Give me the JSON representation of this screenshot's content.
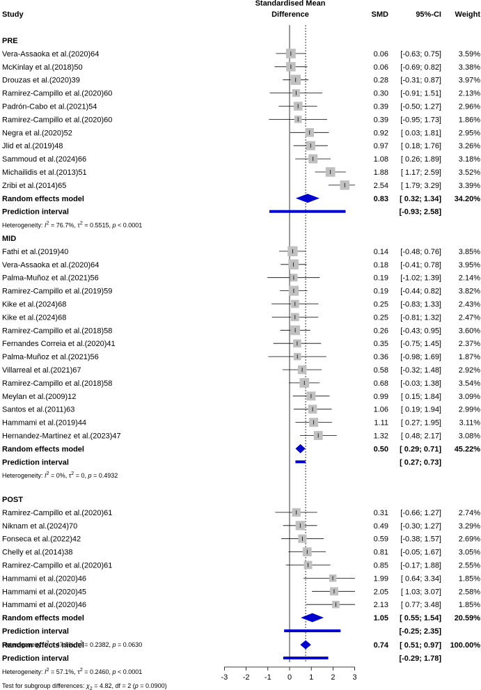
{
  "header": {
    "study": "Study",
    "effect_line1": "Standardised Mean",
    "effect_line2": "Difference",
    "smd": "SMD",
    "ci": "95%-CI",
    "weight": "Weight"
  },
  "chart_data": {
    "type": "forest",
    "xlim": [
      -3,
      3
    ],
    "xticks": [
      "-3",
      "-2",
      "-1",
      "0",
      "1",
      "2",
      "3"
    ],
    "reference_line": 0,
    "overall_line": 0.74,
    "colors": {
      "box": "#c0c0c0",
      "diamond": "#0000cc",
      "line": "#000000"
    },
    "groups": [
      {
        "name": "PRE",
        "studies": [
          {
            "label": "Vera-Assaoka et al.(2020)64",
            "smd": 0.06,
            "lo": -0.63,
            "hi": 0.75,
            "smd_text": "0.06",
            "ci_text": "[-0.63; 0.75]",
            "weight": "3.59%"
          },
          {
            "label": "McKinlay et al.(2018)50",
            "smd": 0.06,
            "lo": -0.69,
            "hi": 0.82,
            "smd_text": "0.06",
            "ci_text": "[-0.69; 0.82]",
            "weight": "3.38%"
          },
          {
            "label": "Drouzas et al.(2020)39",
            "smd": 0.28,
            "lo": -0.31,
            "hi": 0.87,
            "smd_text": "0.28",
            "ci_text": "[-0.31; 0.87]",
            "weight": "3.97%"
          },
          {
            "label": "Ramirez-Campillo et al.(2020)60",
            "smd": 0.3,
            "lo": -0.91,
            "hi": 1.51,
            "smd_text": "0.30",
            "ci_text": "[-0.91; 1.51]",
            "weight": "2.13%"
          },
          {
            "label": "Padrón-Cabo et al.(2021)54",
            "smd": 0.39,
            "lo": -0.5,
            "hi": 1.27,
            "smd_text": "0.39",
            "ci_text": "[-0.50; 1.27]",
            "weight": "2.96%"
          },
          {
            "label": "Ramirez-Campillo et al.(2020)60",
            "smd": 0.39,
            "lo": -0.95,
            "hi": 1.73,
            "smd_text": "0.39",
            "ci_text": "[-0.95; 1.73]",
            "weight": "1.86%"
          },
          {
            "label": "Negra et al.(2020)52",
            "smd": 0.92,
            "lo": 0.03,
            "hi": 1.81,
            "smd_text": "0.92",
            "ci_text": "[ 0.03; 1.81]",
            "weight": "2.95%"
          },
          {
            "label": "Jlid et al.(2019)48",
            "smd": 0.97,
            "lo": 0.18,
            "hi": 1.76,
            "smd_text": "0.97",
            "ci_text": "[ 0.18; 1.76]",
            "weight": "3.26%"
          },
          {
            "label": "Sammoud et al.(2024)66",
            "smd": 1.08,
            "lo": 0.26,
            "hi": 1.89,
            "smd_text": "1.08",
            "ci_text": "[ 0.26; 1.89]",
            "weight": "3.18%"
          },
          {
            "label": "Michailidis et al.(2013)51",
            "smd": 1.88,
            "lo": 1.17,
            "hi": 2.59,
            "smd_text": "1.88",
            "ci_text": "[ 1.17; 2.59]",
            "weight": "3.52%"
          },
          {
            "label": "Zribi et al.(2014)65",
            "smd": 2.54,
            "lo": 1.79,
            "hi": 3.29,
            "smd_text": "2.54",
            "ci_text": "[ 1.79; 3.29]",
            "weight": "3.39%"
          }
        ],
        "random": {
          "label": "Random effects model",
          "smd": 0.83,
          "lo": 0.32,
          "hi": 1.34,
          "smd_text": "0.83",
          "ci_text": "[ 0.32; 1.34]",
          "weight": "34.20%"
        },
        "prediction": {
          "label": "Prediction interval",
          "lo": -0.93,
          "hi": 2.58,
          "ci_text": "[-0.93; 2.58]"
        },
        "heterogeneity": {
          "prefix": "Heterogeneity: ",
          "i2": " = 76.7%, ",
          "tau2": " = 0.5515, ",
          "p": " < 0.0001"
        }
      },
      {
        "name": "MID",
        "studies": [
          {
            "label": "Fathi et al.(2019)40",
            "smd": 0.14,
            "lo": -0.48,
            "hi": 0.76,
            "smd_text": "0.14",
            "ci_text": "[-0.48; 0.76]",
            "weight": "3.85%"
          },
          {
            "label": "Vera-Assaoka et al.(2020)64",
            "smd": 0.18,
            "lo": -0.41,
            "hi": 0.78,
            "smd_text": "0.18",
            "ci_text": "[-0.41; 0.78]",
            "weight": "3.95%"
          },
          {
            "label": "Palma-Muñoz et al.(2021)56",
            "smd": 0.19,
            "lo": -1.02,
            "hi": 1.39,
            "smd_text": "0.19",
            "ci_text": "[-1.02; 1.39]",
            "weight": "2.14%"
          },
          {
            "label": "Ramirez-Campillo et al.(2019)59",
            "smd": 0.19,
            "lo": -0.44,
            "hi": 0.82,
            "smd_text": "0.19",
            "ci_text": "[-0.44; 0.82]",
            "weight": "3.82%"
          },
          {
            "label": "Kike et al.(2024)68",
            "smd": 0.25,
            "lo": -0.83,
            "hi": 1.33,
            "smd_text": "0.25",
            "ci_text": "[-0.83; 1.33]",
            "weight": "2.43%"
          },
          {
            "label": "Kike et al.(2024)68",
            "smd": 0.25,
            "lo": -0.81,
            "hi": 1.32,
            "smd_text": "0.25",
            "ci_text": "[-0.81; 1.32]",
            "weight": "2.47%"
          },
          {
            "label": "Ramirez-Campillo et al.(2018)58",
            "smd": 0.26,
            "lo": -0.43,
            "hi": 0.95,
            "smd_text": "0.26",
            "ci_text": "[-0.43; 0.95]",
            "weight": "3.60%"
          },
          {
            "label": "Fernandes Correia et al.(2020)41",
            "smd": 0.35,
            "lo": -0.75,
            "hi": 1.45,
            "smd_text": "0.35",
            "ci_text": "[-0.75; 1.45]",
            "weight": "2.37%"
          },
          {
            "label": "Palma-Muñoz et al.(2021)56",
            "smd": 0.36,
            "lo": -0.98,
            "hi": 1.69,
            "smd_text": "0.36",
            "ci_text": "[-0.98; 1.69]",
            "weight": "1.87%"
          },
          {
            "label": "Villarreal et al.(2021)67",
            "smd": 0.58,
            "lo": -0.32,
            "hi": 1.48,
            "smd_text": "0.58",
            "ci_text": "[-0.32; 1.48]",
            "weight": "2.92%"
          },
          {
            "label": "Ramirez-Campillo et al.(2018)58",
            "smd": 0.68,
            "lo": -0.03,
            "hi": 1.38,
            "smd_text": "0.68",
            "ci_text": "[-0.03; 1.38]",
            "weight": "3.54%"
          },
          {
            "label": "Meylan et al.(2009)12",
            "smd": 0.99,
            "lo": 0.15,
            "hi": 1.84,
            "smd_text": "0.99",
            "ci_text": "[ 0.15; 1.84]",
            "weight": "3.09%"
          },
          {
            "label": "Santos et al.(2011)63",
            "smd": 1.06,
            "lo": 0.19,
            "hi": 1.94,
            "smd_text": "1.06",
            "ci_text": "[ 0.19; 1.94]",
            "weight": "2.99%"
          },
          {
            "label": "Hammami et al.(2019)44",
            "smd": 1.11,
            "lo": 0.27,
            "hi": 1.95,
            "smd_text": "1.11",
            "ci_text": "[ 0.27; 1.95]",
            "weight": "3.11%"
          },
          {
            "label": "Hernandez-Martinez et al.(2023)47",
            "smd": 1.32,
            "lo": 0.48,
            "hi": 2.17,
            "smd_text": "1.32",
            "ci_text": "[ 0.48; 2.17]",
            "weight": "3.08%"
          }
        ],
        "random": {
          "label": "Random effects model",
          "smd": 0.5,
          "lo": 0.29,
          "hi": 0.71,
          "smd_text": "0.50",
          "ci_text": "[ 0.29; 0.71]",
          "weight": "45.22%"
        },
        "prediction": {
          "label": "Prediction interval",
          "lo": 0.27,
          "hi": 0.73,
          "ci_text": "[ 0.27; 0.73]"
        },
        "heterogeneity": {
          "prefix": "Heterogeneity: ",
          "i2": " = 0%, ",
          "tau2": " = 0, ",
          "p": " = 0.4932"
        }
      },
      {
        "name": "POST",
        "studies": [
          {
            "label": "Ramirez-Campillo et al.(2020)61",
            "smd": 0.31,
            "lo": -0.66,
            "hi": 1.27,
            "smd_text": "0.31",
            "ci_text": "[-0.66; 1.27]",
            "weight": "2.74%"
          },
          {
            "label": "Niknam et al.(2024)70",
            "smd": 0.49,
            "lo": -0.3,
            "hi": 1.27,
            "smd_text": "0.49",
            "ci_text": "[-0.30; 1.27]",
            "weight": "3.29%"
          },
          {
            "label": "Fonseca et al.(2022)42",
            "smd": 0.59,
            "lo": -0.38,
            "hi": 1.57,
            "smd_text": "0.59",
            "ci_text": "[-0.38; 1.57]",
            "weight": "2.69%"
          },
          {
            "label": "Chelly et al.(2014)38",
            "smd": 0.81,
            "lo": -0.05,
            "hi": 1.67,
            "smd_text": "0.81",
            "ci_text": "[-0.05; 1.67]",
            "weight": "3.05%"
          },
          {
            "label": "Ramirez-Campillo et al.(2020)61",
            "smd": 0.85,
            "lo": -0.17,
            "hi": 1.88,
            "smd_text": "0.85",
            "ci_text": "[-0.17; 1.88]",
            "weight": "2.55%"
          },
          {
            "label": "Hammami et al.(2020)46",
            "smd": 1.99,
            "lo": 0.64,
            "hi": 3.34,
            "smd_text": "1.99",
            "ci_text": "[ 0.64; 3.34]",
            "weight": "1.85%"
          },
          {
            "label": "Hammami et al.(2020)45",
            "smd": 2.05,
            "lo": 1.03,
            "hi": 3.07,
            "smd_text": "2.05",
            "ci_text": "[ 1.03; 3.07]",
            "weight": "2.58%"
          },
          {
            "label": "Hammami et al.(2020)46",
            "smd": 2.13,
            "lo": 0.77,
            "hi": 3.48,
            "smd_text": "2.13",
            "ci_text": "[ 0.77; 3.48]",
            "weight": "1.85%"
          }
        ],
        "random": {
          "label": "Random effects model",
          "smd": 1.05,
          "lo": 0.55,
          "hi": 1.54,
          "smd_text": "1.05",
          "ci_text": "[ 0.55; 1.54]",
          "weight": "20.59%"
        },
        "prediction": {
          "label": "Prediction interval",
          "lo": -0.25,
          "hi": 2.35,
          "ci_text": "[-0.25; 2.35]"
        },
        "heterogeneity": {
          "prefix": "Heterogeneity: ",
          "i2": " = 47.7%, ",
          "tau2": " = 0.2382, ",
          "p": " = 0.0630"
        }
      }
    ],
    "overall": {
      "random": {
        "label": "Random effects model",
        "smd": 0.74,
        "lo": 0.51,
        "hi": 0.97,
        "smd_text": "0.74",
        "ci_text": "[ 0.51; 0.97]",
        "weight": "100.00%"
      },
      "prediction": {
        "label": "Prediction interval",
        "lo": -0.29,
        "hi": 1.78,
        "ci_text": "[-0.29; 1.78]"
      },
      "heterogeneity": {
        "prefix": "Heterogeneity: ",
        "i2": " = 57.1%, ",
        "tau2": " = 0.2460, ",
        "p": " < 0.0001"
      },
      "subgroup_test": {
        "prefix": "Test for subgroup differences: ",
        "chi2": " = 4.82, df = 2 (",
        "p": " = 0.0900)"
      }
    }
  }
}
